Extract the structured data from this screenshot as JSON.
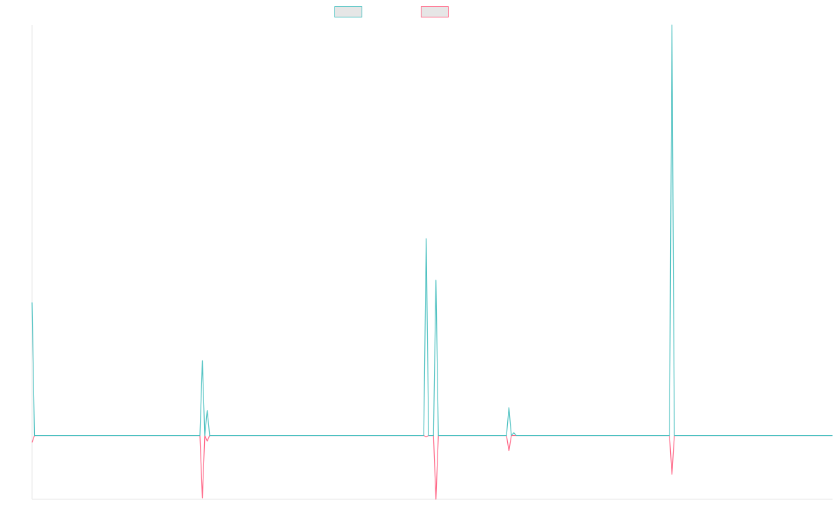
{
  "chart_data": {
    "type": "line",
    "title": "",
    "xlabel": "",
    "ylabel": "",
    "grid": false,
    "legend_position": "top-center",
    "n_points": 330,
    "ylim": [
      -2.3,
      14.8
    ],
    "series": [
      {
        "color": "#4bc0c0",
        "fill": "#e6e6e6",
        "points": [
          [
            0,
            4.8
          ],
          [
            1,
            0
          ],
          [
            69,
            0
          ],
          [
            70,
            2.7
          ],
          [
            71,
            0
          ],
          [
            72,
            0.9
          ],
          [
            73,
            0
          ],
          [
            161,
            0
          ],
          [
            162,
            7.1
          ],
          [
            163,
            0
          ],
          [
            164,
            0
          ],
          [
            165,
            0
          ],
          [
            166,
            5.6
          ],
          [
            167,
            0
          ],
          [
            195,
            0
          ],
          [
            196,
            1.0
          ],
          [
            197,
            0
          ],
          [
            198,
            0.1
          ],
          [
            199,
            0
          ],
          [
            262,
            0
          ],
          [
            263,
            14.8
          ],
          [
            264,
            0
          ],
          [
            329,
            0
          ]
        ]
      },
      {
        "color": "#ff6384",
        "fill": "#e6e6e6",
        "points": [
          [
            0,
            -0.25
          ],
          [
            1,
            0
          ],
          [
            69,
            0
          ],
          [
            70,
            -2.25
          ],
          [
            71,
            0
          ],
          [
            72,
            -0.2
          ],
          [
            73,
            0
          ],
          [
            161,
            0
          ],
          [
            162,
            -0.05
          ],
          [
            163,
            0
          ],
          [
            165,
            0
          ],
          [
            166,
            -2.3
          ],
          [
            167,
            0
          ],
          [
            195,
            0
          ],
          [
            196,
            -0.55
          ],
          [
            197,
            0
          ],
          [
            262,
            0
          ],
          [
            263,
            -1.4
          ],
          [
            264,
            0
          ],
          [
            329,
            0
          ]
        ]
      }
    ]
  }
}
